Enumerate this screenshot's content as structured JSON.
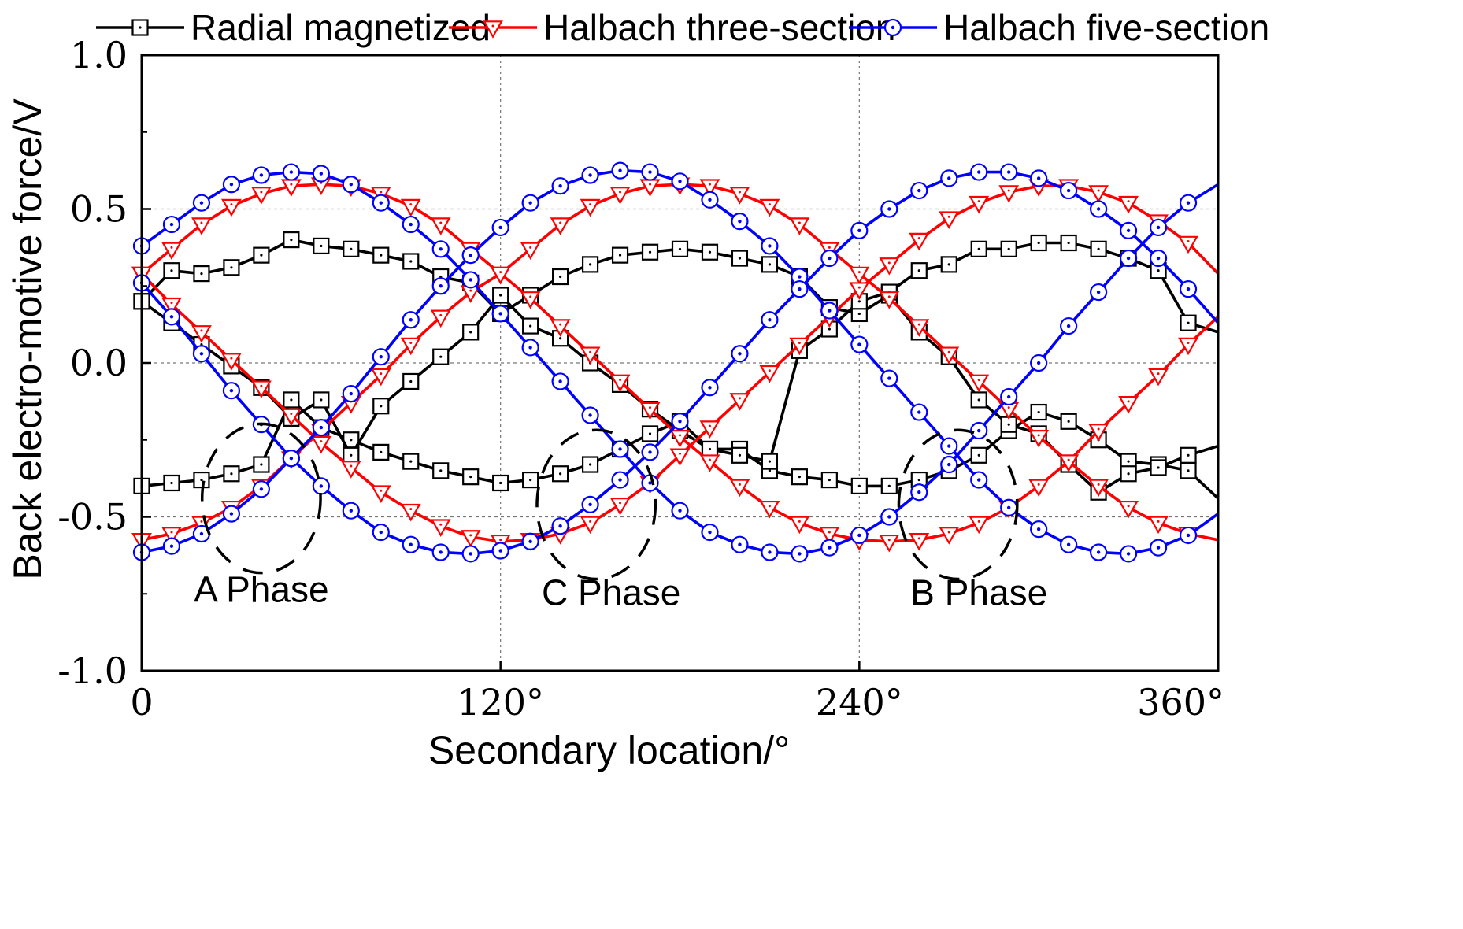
{
  "chart_data": {
    "type": "line",
    "title": "",
    "xlabel": "Secondary location/°",
    "ylabel": "Back electro-motive force/V",
    "xlim": [
      0,
      360
    ],
    "ylim": [
      -1.0,
      1.0
    ],
    "x_ticks": [
      {
        "value": 0,
        "label": "0"
      },
      {
        "value": 120,
        "label": "120°"
      },
      {
        "value": 240,
        "label": "240°"
      },
      {
        "value": 360,
        "label": "360°"
      }
    ],
    "y_ticks": [
      {
        "value": 1.0,
        "label": "1.0"
      },
      {
        "value": 0.5,
        "label": "0.5"
      },
      {
        "value": 0.0,
        "label": "0.0"
      },
      {
        "value": -0.5,
        "label": "-0.5"
      },
      {
        "value": -1.0,
        "label": "-1.0"
      }
    ],
    "grid": true,
    "legend_position": "top",
    "x": [
      0,
      10,
      20,
      30,
      40,
      50,
      60,
      70,
      80,
      90,
      100,
      110,
      120,
      130,
      140,
      150,
      160,
      170,
      180,
      190,
      200,
      210,
      220,
      230,
      240,
      250,
      260,
      270,
      280,
      290,
      300,
      310,
      320,
      330,
      340,
      350,
      360
    ],
    "series": [
      {
        "name": "Radial magnetized",
        "phase": "A",
        "color": "#000000",
        "marker": "square",
        "values": [
          -0.4,
          -0.39,
          -0.38,
          -0.36,
          -0.33,
          -0.12,
          -0.21,
          -0.25,
          -0.29,
          -0.32,
          -0.35,
          -0.37,
          -0.39,
          -0.38,
          -0.36,
          -0.33,
          -0.28,
          -0.23,
          -0.19,
          -0.28,
          -0.28,
          -0.35,
          -0.37,
          -0.38,
          -0.4,
          -0.4,
          -0.38,
          -0.35,
          -0.3,
          -0.22,
          -0.16,
          -0.19,
          -0.25,
          -0.32,
          -0.33,
          -0.35,
          -0.44
        ]
      },
      {
        "name": "Radial magnetized",
        "phase": "C",
        "color": "#000000",
        "marker": "square",
        "values": [
          0.2,
          0.3,
          0.29,
          0.31,
          0.35,
          0.4,
          0.38,
          0.37,
          0.35,
          0.33,
          0.28,
          0.26,
          0.16,
          0.22,
          0.28,
          0.32,
          0.35,
          0.36,
          0.37,
          0.36,
          0.34,
          0.32,
          0.28,
          0.18,
          0.16,
          0.22,
          0.1,
          0.02,
          -0.12,
          -0.2,
          -0.23,
          -0.33,
          -0.42,
          -0.36,
          -0.34,
          -0.3,
          -0.27
        ]
      },
      {
        "name": "Radial magnetized",
        "phase": "B",
        "color": "#000000",
        "marker": "square",
        "values": [
          0.2,
          0.13,
          0.06,
          -0.01,
          -0.08,
          -0.18,
          -0.12,
          -0.3,
          -0.14,
          -0.06,
          0.02,
          0.1,
          0.22,
          0.12,
          0.08,
          0.0,
          -0.07,
          -0.15,
          -0.22,
          -0.28,
          -0.3,
          -0.32,
          0.04,
          0.11,
          0.2,
          0.23,
          0.3,
          0.32,
          0.37,
          0.37,
          0.39,
          0.39,
          0.37,
          0.34,
          0.3,
          0.13,
          0.1
        ]
      },
      {
        "name": "Halbach three-section",
        "phase": "A",
        "color": "#ff0000",
        "marker": "triangle",
        "values": [
          -0.575,
          -0.555,
          -0.52,
          -0.47,
          -0.4,
          -0.31,
          -0.22,
          -0.13,
          -0.04,
          0.06,
          0.15,
          0.23,
          0.29,
          0.37,
          0.45,
          0.51,
          0.55,
          0.575,
          0.58,
          0.575,
          0.55,
          0.51,
          0.45,
          0.37,
          0.29,
          0.21,
          0.12,
          0.03,
          -0.06,
          -0.15,
          -0.24,
          -0.32,
          -0.4,
          -0.47,
          -0.52,
          -0.555,
          -0.575
        ]
      },
      {
        "name": "Halbach three-section",
        "phase": "B",
        "color": "#ff0000",
        "marker": "triangle",
        "values": [
          0.29,
          0.37,
          0.45,
          0.51,
          0.55,
          0.575,
          0.58,
          0.575,
          0.55,
          0.51,
          0.45,
          0.37,
          0.29,
          0.21,
          0.12,
          0.03,
          -0.06,
          -0.15,
          -0.24,
          -0.32,
          -0.4,
          -0.47,
          -0.52,
          -0.555,
          -0.575,
          -0.58,
          -0.575,
          -0.555,
          -0.52,
          -0.47,
          -0.4,
          -0.32,
          -0.22,
          -0.13,
          -0.04,
          0.06,
          0.15
        ]
      },
      {
        "name": "Halbach three-section",
        "phase": "C",
        "color": "#ff0000",
        "marker": "triangle",
        "values": [
          0.29,
          0.19,
          0.1,
          0.01,
          -0.08,
          -0.17,
          -0.26,
          -0.34,
          -0.42,
          -0.48,
          -0.53,
          -0.565,
          -0.58,
          -0.575,
          -0.555,
          -0.52,
          -0.46,
          -0.39,
          -0.3,
          -0.21,
          -0.12,
          -0.03,
          0.06,
          0.15,
          0.24,
          0.32,
          0.4,
          0.47,
          0.52,
          0.555,
          0.575,
          0.575,
          0.555,
          0.52,
          0.46,
          0.39,
          0.29
        ]
      },
      {
        "name": "Halbach five-section",
        "phase": "A",
        "color": "#0000ff",
        "marker": "circle",
        "values": [
          -0.615,
          -0.595,
          -0.555,
          -0.49,
          -0.41,
          -0.31,
          -0.21,
          -0.1,
          0.02,
          0.14,
          0.25,
          0.35,
          0.44,
          0.52,
          0.575,
          0.61,
          0.625,
          0.62,
          0.59,
          0.53,
          0.46,
          0.38,
          0.28,
          0.17,
          0.06,
          -0.05,
          -0.16,
          -0.27,
          -0.38,
          -0.47,
          -0.54,
          -0.59,
          -0.615,
          -0.62,
          -0.6,
          -0.56,
          -0.49
        ]
      },
      {
        "name": "Halbach five-section",
        "phase": "B",
        "color": "#0000ff",
        "marker": "circle",
        "values": [
          0.38,
          0.45,
          0.52,
          0.58,
          0.61,
          0.62,
          0.615,
          0.58,
          0.52,
          0.45,
          0.37,
          0.27,
          0.16,
          0.05,
          -0.06,
          -0.17,
          -0.28,
          -0.39,
          -0.48,
          -0.55,
          -0.59,
          -0.615,
          -0.62,
          -0.6,
          -0.56,
          -0.5,
          -0.42,
          -0.33,
          -0.22,
          -0.11,
          0.0,
          0.12,
          0.23,
          0.34,
          0.44,
          0.52,
          0.58
        ]
      },
      {
        "name": "Halbach five-section",
        "phase": "C",
        "color": "#0000ff",
        "marker": "circle",
        "values": [
          0.26,
          0.15,
          0.03,
          -0.09,
          -0.2,
          -0.31,
          -0.4,
          -0.48,
          -0.55,
          -0.59,
          -0.615,
          -0.62,
          -0.61,
          -0.58,
          -0.53,
          -0.46,
          -0.38,
          -0.29,
          -0.19,
          -0.08,
          0.03,
          0.14,
          0.24,
          0.34,
          0.43,
          0.5,
          0.56,
          0.6,
          0.62,
          0.62,
          0.6,
          0.56,
          0.5,
          0.43,
          0.34,
          0.24,
          0.13
        ]
      }
    ],
    "legend": [
      {
        "label": "Radial magnetized",
        "color": "#000000",
        "marker": "square"
      },
      {
        "label": "Halbach three-section",
        "color": "#ff0000",
        "marker": "triangle"
      },
      {
        "label": "Halbach five-section",
        "color": "#0000ff",
        "marker": "circle"
      }
    ],
    "annotations": [
      {
        "text": "A Phase",
        "x": 40,
        "y": -0.73
      },
      {
        "text": "C Phase",
        "x": 157,
        "y": -0.74
      },
      {
        "text": "B Phase",
        "x": 280,
        "y": -0.74
      }
    ]
  }
}
